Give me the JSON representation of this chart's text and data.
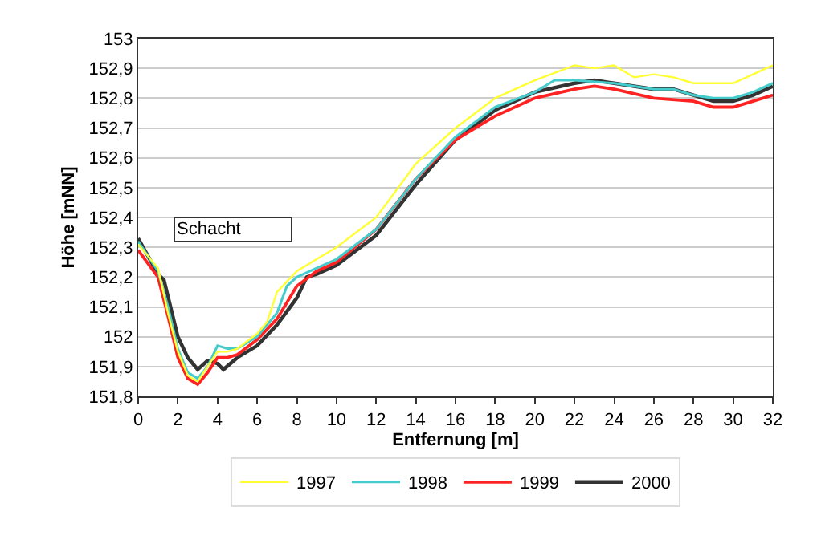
{
  "chart_data": {
    "type": "line",
    "xlabel": "Entfernung [m]",
    "ylabel": "Höhe [mNN]",
    "annotations": [
      "Schacht"
    ],
    "xlim": [
      0,
      32
    ],
    "xticks": [
      0,
      2,
      4,
      6,
      8,
      10,
      12,
      14,
      16,
      18,
      20,
      22,
      24,
      26,
      28,
      30,
      32
    ],
    "ylim": [
      151.8,
      153
    ],
    "yticks": [
      {
        "value": 151.8,
        "label": "151,8"
      },
      {
        "value": 151.9,
        "label": "151,9"
      },
      152,
      {
        "value": 152.1,
        "label": "152,1"
      },
      {
        "value": 152.2,
        "label": "152,2"
      },
      {
        "value": 152.3,
        "label": "152,3"
      },
      {
        "value": 152.4,
        "label": "152,4"
      },
      {
        "value": 152.5,
        "label": "152,5"
      },
      {
        "value": 152.6,
        "label": "152,6"
      },
      {
        "value": 152.7,
        "label": "152,7"
      },
      {
        "value": 152.8,
        "label": "152,8"
      },
      {
        "value": 152.9,
        "label": "152,9"
      },
      153
    ],
    "grid": "y",
    "legend": "bottom",
    "marker": "none",
    "line_style": "solid",
    "series": [
      {
        "name": "1997",
        "color": "#ffff33",
        "x": [
          0,
          1,
          1.5,
          2,
          2.5,
          3,
          3.5,
          4,
          4.5,
          5,
          6,
          6.5,
          7,
          8,
          9,
          10,
          12,
          14,
          16,
          18,
          20,
          22,
          23,
          24,
          25,
          26,
          27,
          28,
          29,
          30,
          31,
          32
        ],
        "values": [
          152.31,
          152.23,
          152.08,
          151.95,
          151.87,
          151.85,
          151.9,
          151.95,
          151.95,
          151.96,
          152.01,
          152.05,
          152.15,
          152.22,
          152.26,
          152.3,
          152.4,
          152.58,
          152.7,
          152.8,
          152.86,
          152.91,
          152.9,
          152.91,
          152.87,
          152.88,
          152.87,
          152.85,
          152.85,
          152.85,
          152.88,
          152.91
        ]
      },
      {
        "name": "1998",
        "color": "#44cccc",
        "x": [
          0,
          1,
          1.5,
          2,
          2.5,
          3,
          3.5,
          4,
          4.5,
          5,
          6,
          7,
          7.5,
          8,
          9,
          10,
          12,
          14,
          16,
          18,
          20,
          21,
          22,
          24,
          26,
          27,
          28,
          29,
          30,
          31,
          32
        ],
        "values": [
          152.32,
          152.22,
          152.1,
          151.96,
          151.88,
          151.86,
          151.9,
          151.97,
          151.96,
          151.96,
          152.0,
          152.08,
          152.17,
          152.2,
          152.23,
          152.26,
          152.36,
          152.53,
          152.67,
          152.77,
          152.82,
          152.86,
          152.86,
          152.85,
          152.83,
          152.83,
          152.81,
          152.8,
          152.8,
          152.82,
          152.85
        ]
      },
      {
        "name": "1999",
        "color": "#ff2222",
        "x": [
          0,
          1,
          1.5,
          2,
          2.5,
          3,
          3.5,
          4,
          4.5,
          5,
          6,
          7,
          8,
          9,
          10,
          12,
          14,
          16,
          18,
          20,
          22,
          23,
          24,
          26,
          28,
          29,
          30,
          31,
          32
        ],
        "values": [
          152.29,
          152.2,
          152.07,
          151.93,
          151.86,
          151.84,
          151.88,
          151.93,
          151.93,
          151.94,
          151.99,
          152.06,
          152.17,
          152.22,
          152.25,
          152.36,
          152.53,
          152.66,
          152.74,
          152.8,
          152.83,
          152.84,
          152.83,
          152.8,
          152.79,
          152.77,
          152.77,
          152.79,
          152.81
        ]
      },
      {
        "name": "2000",
        "color": "#333333",
        "x": [
          0,
          1,
          1.3,
          2,
          2.5,
          3,
          3.5,
          4,
          4.3,
          5,
          6,
          7,
          8,
          8.5,
          9,
          10,
          12,
          14,
          16,
          18,
          20,
          22,
          23,
          24,
          26,
          27,
          28,
          29,
          30,
          31,
          32
        ],
        "values": [
          152.33,
          152.21,
          152.19,
          152.0,
          151.93,
          151.89,
          151.92,
          151.91,
          151.89,
          151.93,
          151.97,
          152.04,
          152.13,
          152.2,
          152.21,
          152.24,
          152.34,
          152.51,
          152.66,
          152.76,
          152.82,
          152.85,
          152.86,
          152.85,
          152.83,
          152.83,
          152.81,
          152.79,
          152.79,
          152.81,
          152.84
        ]
      }
    ]
  }
}
